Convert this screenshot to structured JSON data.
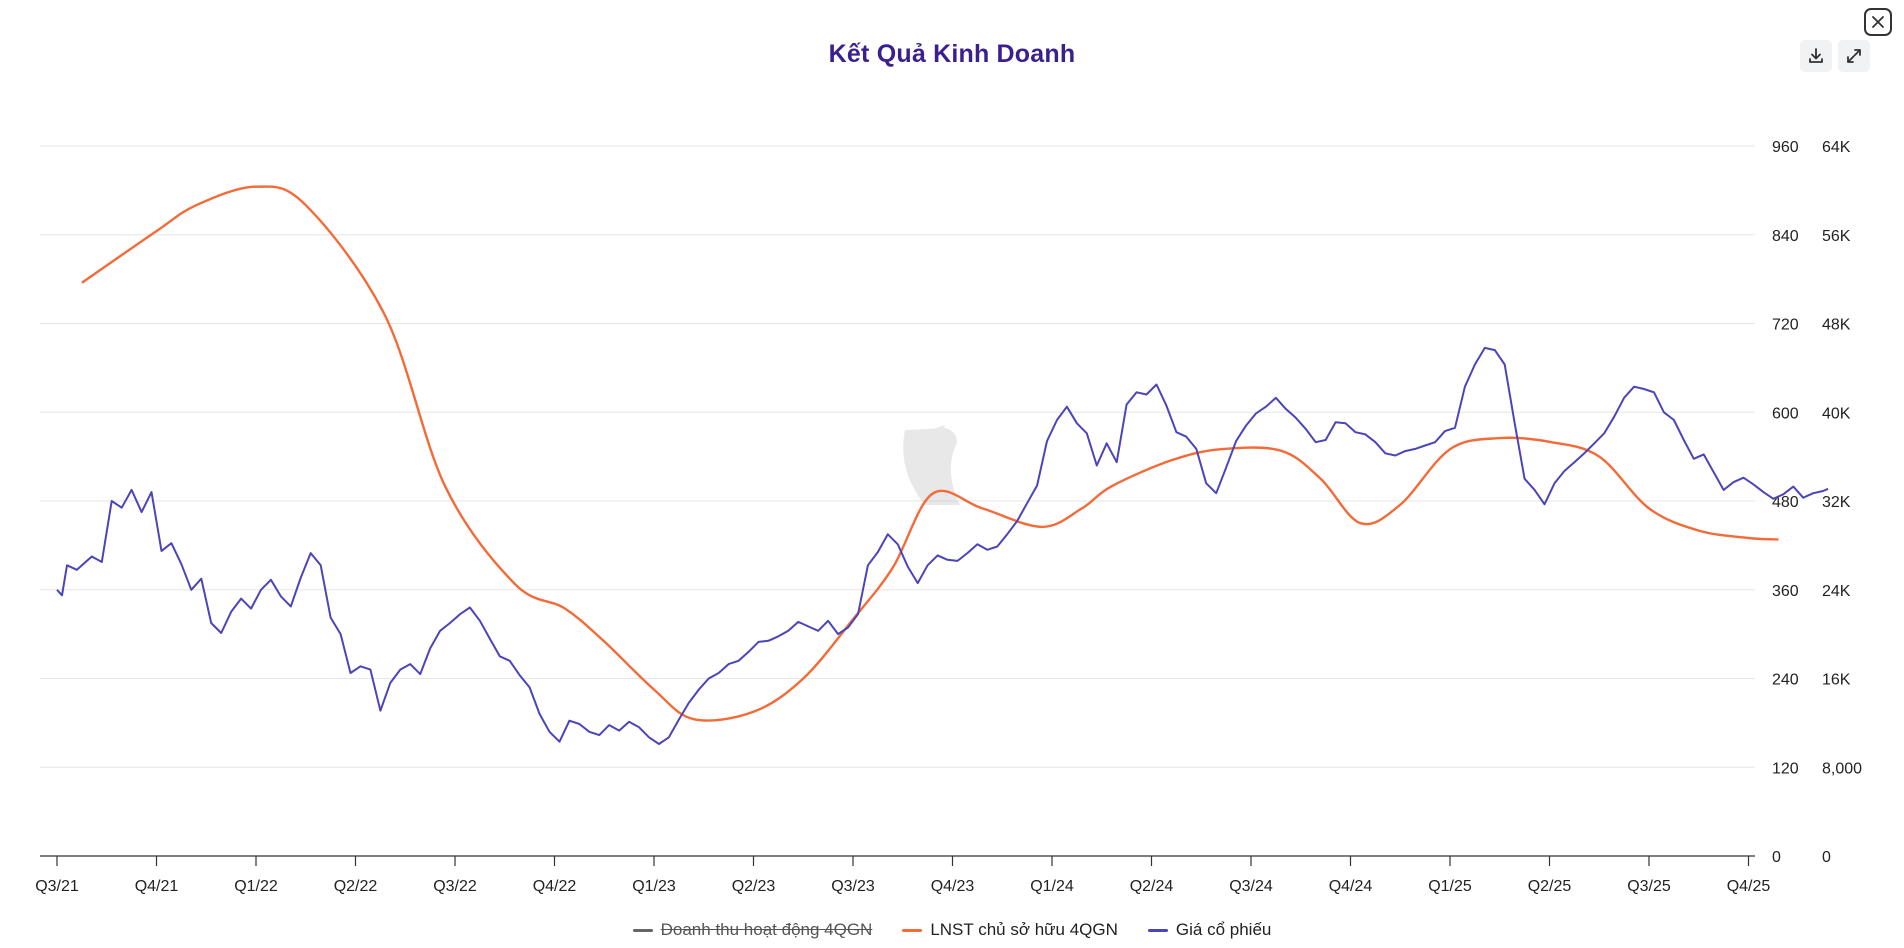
{
  "chart_data": {
    "type": "line",
    "title": "Kết Quả Kinh Doanh",
    "x_ticks": [
      "Q3/21",
      "Q4/21",
      "Q1/22",
      "Q2/22",
      "Q3/22",
      "Q4/22",
      "Q1/23",
      "Q2/23",
      "Q3/23",
      "Q4/23",
      "Q1/24",
      "Q2/24",
      "Q3/24",
      "Q4/24",
      "Q1/25",
      "Q2/25",
      "Q3/25",
      "Q4/25"
    ],
    "left_axis": {
      "ticks": [
        "0",
        "120",
        "240",
        "360",
        "480",
        "600",
        "720",
        "840",
        "960"
      ],
      "range": [
        0,
        960
      ]
    },
    "right_axis": {
      "ticks": [
        "0",
        "8,000",
        "16K",
        "24K",
        "32K",
        "40K",
        "48K",
        "56K",
        "64K"
      ],
      "range": [
        0,
        64000
      ]
    },
    "grid": true,
    "legend_position": "bottom",
    "series": [
      {
        "name": "Doanh thu hoạt động 4QGN",
        "color": "#666666",
        "hidden": true,
        "values": []
      },
      {
        "name": "LNST chủ sở hữu 4QGN",
        "color": "#f26b38",
        "axis": "left",
        "points": [
          [
            0.25,
            775
          ],
          [
            1.0,
            845
          ],
          [
            1.4,
            880
          ],
          [
            2.0,
            905
          ],
          [
            2.5,
            880
          ],
          [
            3.3,
            730
          ],
          [
            3.9,
            500
          ],
          [
            4.6,
            368
          ],
          [
            5.1,
            335
          ],
          [
            5.5,
            290
          ],
          [
            6.0,
            225
          ],
          [
            6.4,
            185
          ],
          [
            7.0,
            195
          ],
          [
            7.5,
            240
          ],
          [
            8.0,
            320
          ],
          [
            8.4,
            390
          ],
          [
            8.8,
            490
          ],
          [
            9.3,
            470
          ],
          [
            9.9,
            445
          ],
          [
            10.3,
            470
          ],
          [
            10.6,
            500
          ],
          [
            11.2,
            535
          ],
          [
            11.7,
            550
          ],
          [
            12.3,
            548
          ],
          [
            12.7,
            510
          ],
          [
            13.1,
            450
          ],
          [
            13.5,
            475
          ],
          [
            14.0,
            550
          ],
          [
            14.5,
            565
          ],
          [
            15.0,
            560
          ],
          [
            15.5,
            540
          ],
          [
            16.0,
            470
          ],
          [
            16.5,
            440
          ],
          [
            17.0,
            430
          ],
          [
            17.3,
            428
          ]
        ]
      },
      {
        "name": "Giá cổ phiếu",
        "color": "#4b45b9",
        "axis": "right",
        "points": [
          [
            0.0,
            24000
          ],
          [
            0.05,
            23500
          ],
          [
            0.1,
            26200
          ],
          [
            0.2,
            25800
          ],
          [
            0.35,
            27000
          ],
          [
            0.45,
            26500
          ],
          [
            0.55,
            32000
          ],
          [
            0.65,
            31400
          ],
          [
            0.75,
            33000
          ],
          [
            0.85,
            31000
          ],
          [
            0.95,
            32800
          ],
          [
            1.05,
            27500
          ],
          [
            1.15,
            28200
          ],
          [
            1.25,
            26300
          ],
          [
            1.35,
            24000
          ],
          [
            1.45,
            25000
          ],
          [
            1.55,
            21000
          ],
          [
            1.65,
            20100
          ],
          [
            1.75,
            22000
          ],
          [
            1.85,
            23200
          ],
          [
            1.95,
            22300
          ],
          [
            2.05,
            24000
          ],
          [
            2.15,
            24900
          ],
          [
            2.25,
            23400
          ],
          [
            2.35,
            22500
          ],
          [
            2.45,
            25100
          ],
          [
            2.55,
            27300
          ],
          [
            2.65,
            26200
          ],
          [
            2.75,
            21500
          ],
          [
            2.85,
            20000
          ],
          [
            2.95,
            16500
          ],
          [
            3.05,
            17100
          ],
          [
            3.15,
            16800
          ],
          [
            3.25,
            13100
          ],
          [
            3.35,
            15600
          ],
          [
            3.45,
            16800
          ],
          [
            3.55,
            17300
          ],
          [
            3.65,
            16400
          ],
          [
            3.75,
            18700
          ],
          [
            3.85,
            20300
          ],
          [
            3.95,
            21000
          ],
          [
            4.05,
            21800
          ],
          [
            4.15,
            22400
          ],
          [
            4.25,
            21200
          ],
          [
            4.35,
            19600
          ],
          [
            4.45,
            18000
          ],
          [
            4.55,
            17600
          ],
          [
            4.65,
            16300
          ],
          [
            4.75,
            15200
          ],
          [
            4.85,
            12800
          ],
          [
            4.95,
            11200
          ],
          [
            5.05,
            10300
          ],
          [
            5.15,
            12200
          ],
          [
            5.25,
            11900
          ],
          [
            5.35,
            11200
          ],
          [
            5.45,
            10900
          ],
          [
            5.55,
            11800
          ],
          [
            5.65,
            11300
          ],
          [
            5.75,
            12100
          ],
          [
            5.85,
            11600
          ],
          [
            5.95,
            10700
          ],
          [
            6.05,
            10100
          ],
          [
            6.15,
            10700
          ],
          [
            6.25,
            12300
          ],
          [
            6.35,
            13800
          ],
          [
            6.45,
            15000
          ],
          [
            6.55,
            16000
          ],
          [
            6.65,
            16500
          ],
          [
            6.75,
            17300
          ],
          [
            6.85,
            17600
          ],
          [
            6.95,
            18400
          ],
          [
            7.05,
            19300
          ],
          [
            7.15,
            19400
          ],
          [
            7.25,
            19800
          ],
          [
            7.35,
            20300
          ],
          [
            7.45,
            21100
          ],
          [
            7.55,
            20700
          ],
          [
            7.65,
            20300
          ],
          [
            7.75,
            21200
          ],
          [
            7.85,
            20000
          ],
          [
            7.95,
            20600
          ],
          [
            8.05,
            21800
          ],
          [
            8.15,
            26200
          ],
          [
            8.25,
            27400
          ],
          [
            8.35,
            29000
          ],
          [
            8.45,
            28100
          ],
          [
            8.55,
            26100
          ],
          [
            8.65,
            24600
          ],
          [
            8.75,
            26200
          ],
          [
            8.85,
            27100
          ],
          [
            8.95,
            26700
          ],
          [
            9.05,
            26600
          ],
          [
            9.15,
            27300
          ],
          [
            9.25,
            28100
          ],
          [
            9.35,
            27600
          ],
          [
            9.45,
            27900
          ],
          [
            9.55,
            29000
          ],
          [
            9.65,
            30200
          ],
          [
            9.75,
            31800
          ],
          [
            9.85,
            33400
          ],
          [
            9.95,
            37400
          ],
          [
            10.05,
            39300
          ],
          [
            10.15,
            40500
          ],
          [
            10.25,
            39000
          ],
          [
            10.35,
            38100
          ],
          [
            10.45,
            35200
          ],
          [
            10.55,
            37200
          ],
          [
            10.65,
            35500
          ],
          [
            10.75,
            40700
          ],
          [
            10.85,
            41800
          ],
          [
            10.95,
            41600
          ],
          [
            11.05,
            42500
          ],
          [
            11.15,
            40600
          ],
          [
            11.25,
            38200
          ],
          [
            11.35,
            37800
          ],
          [
            11.45,
            36700
          ],
          [
            11.55,
            33600
          ],
          [
            11.65,
            32700
          ],
          [
            11.75,
            35000
          ],
          [
            11.85,
            37400
          ],
          [
            11.95,
            38800
          ],
          [
            12.05,
            39900
          ],
          [
            12.15,
            40500
          ],
          [
            12.25,
            41300
          ],
          [
            12.35,
            40300
          ],
          [
            12.45,
            39500
          ],
          [
            12.55,
            38500
          ],
          [
            12.65,
            37300
          ],
          [
            12.75,
            37500
          ],
          [
            12.85,
            39100
          ],
          [
            12.95,
            39000
          ],
          [
            13.05,
            38200
          ],
          [
            13.15,
            38000
          ],
          [
            13.25,
            37300
          ],
          [
            13.35,
            36300
          ],
          [
            13.45,
            36100
          ],
          [
            13.55,
            36500
          ],
          [
            13.65,
            36700
          ],
          [
            13.75,
            37000
          ],
          [
            13.85,
            37300
          ],
          [
            13.95,
            38300
          ],
          [
            14.05,
            38600
          ],
          [
            14.15,
            42300
          ],
          [
            14.25,
            44300
          ],
          [
            14.35,
            45800
          ],
          [
            14.45,
            45600
          ],
          [
            14.55,
            44300
          ],
          [
            14.65,
            39000
          ],
          [
            14.75,
            34000
          ],
          [
            14.85,
            33000
          ],
          [
            14.95,
            31700
          ],
          [
            15.05,
            33600
          ],
          [
            15.15,
            34700
          ],
          [
            15.25,
            35500
          ],
          [
            15.35,
            36300
          ],
          [
            15.45,
            37200
          ],
          [
            15.55,
            38100
          ],
          [
            15.65,
            39600
          ],
          [
            15.75,
            41300
          ],
          [
            15.85,
            42300
          ],
          [
            15.95,
            42100
          ],
          [
            16.05,
            41800
          ],
          [
            16.15,
            40000
          ],
          [
            16.25,
            39300
          ],
          [
            16.35,
            37500
          ],
          [
            16.45,
            35800
          ],
          [
            16.55,
            36200
          ],
          [
            16.65,
            34600
          ],
          [
            16.75,
            33000
          ],
          [
            16.85,
            33700
          ],
          [
            16.95,
            34100
          ],
          [
            17.05,
            33500
          ],
          [
            17.15,
            32800
          ],
          [
            17.25,
            32200
          ],
          [
            17.35,
            32600
          ],
          [
            17.45,
            33300
          ],
          [
            17.55,
            32300
          ],
          [
            17.65,
            32700
          ],
          [
            17.75,
            32900
          ],
          [
            17.8,
            33100
          ]
        ]
      }
    ]
  }
}
